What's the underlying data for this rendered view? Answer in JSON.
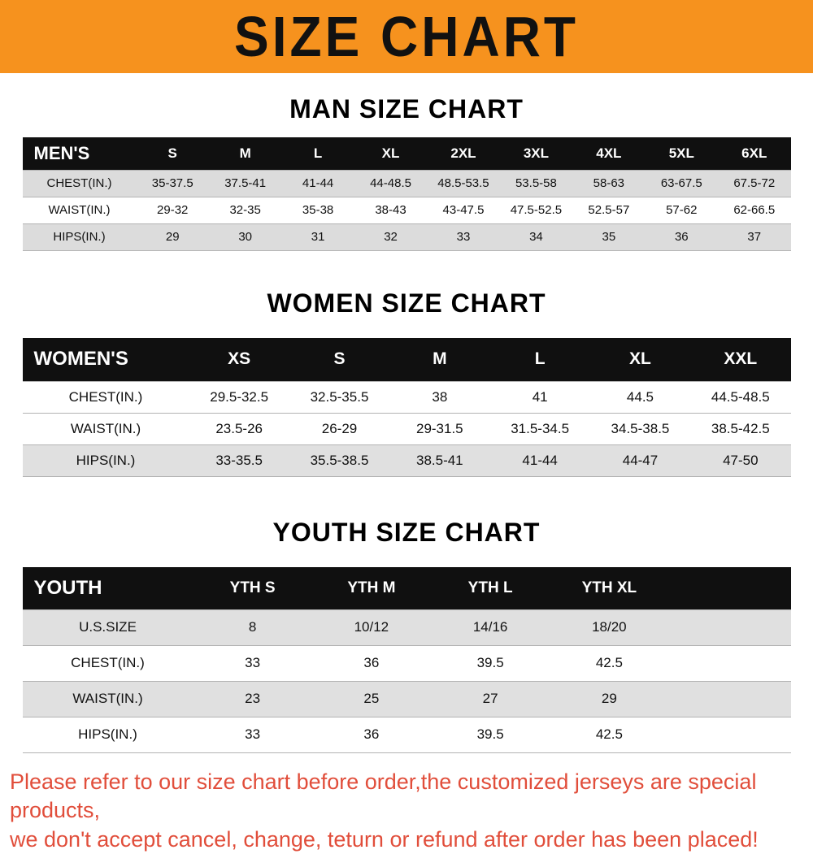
{
  "banner": {
    "title": "SIZE CHART",
    "bg_color": "#F6921E",
    "text_color": "#111111"
  },
  "sections": [
    {
      "heading": "MAN SIZE CHART",
      "table": {
        "header": [
          "MEN'S",
          "S",
          "M",
          "L",
          "XL",
          "2XL",
          "3XL",
          "4XL",
          "5XL",
          "6XL"
        ],
        "rows": [
          {
            "label": "CHEST(IN.)",
            "values": [
              "35-37.5",
              "37.5-41",
              "41-44",
              "44-48.5",
              "48.5-53.5",
              "53.5-58",
              "58-63",
              "63-67.5",
              "67.5-72"
            ]
          },
          {
            "label": "WAIST(IN.)",
            "values": [
              "29-32",
              "32-35",
              "35-38",
              "38-43",
              "43-47.5",
              "47.5-52.5",
              "52.5-57",
              "57-62",
              "62-66.5"
            ]
          },
          {
            "label": "HIPS(IN.)",
            "values": [
              "29",
              "30",
              "31",
              "32",
              "33",
              "34",
              "35",
              "36",
              "37"
            ]
          }
        ]
      }
    },
    {
      "heading": "WOMEN SIZE CHART",
      "table": {
        "header": [
          "WOMEN'S",
          "XS",
          "S",
          "M",
          "L",
          "XL",
          "XXL"
        ],
        "rows": [
          {
            "label": "CHEST(IN.)",
            "values": [
              "29.5-32.5",
              "32.5-35.5",
              "38",
              "41",
              "44.5",
              "44.5-48.5"
            ]
          },
          {
            "label": "WAIST(IN.)",
            "values": [
              "23.5-26",
              "26-29",
              "29-31.5",
              "31.5-34.5",
              "34.5-38.5",
              "38.5-42.5"
            ]
          },
          {
            "label": "HIPS(IN.)",
            "values": [
              "33-35.5",
              "35.5-38.5",
              "38.5-41",
              "41-44",
              "44-47",
              "47-50"
            ]
          }
        ]
      }
    },
    {
      "heading": "YOUTH SIZE CHART",
      "table": {
        "header": [
          "YOUTH",
          "YTH S",
          "YTH M",
          "YTH L",
          "YTH XL"
        ],
        "rows": [
          {
            "label": "U.S.SIZE",
            "values": [
              "8",
              "10/12",
              "14/16",
              "18/20"
            ]
          },
          {
            "label": "CHEST(IN.)",
            "values": [
              "33",
              "36",
              "39.5",
              "42.5"
            ]
          },
          {
            "label": "WAIST(IN.)",
            "values": [
              "23",
              "25",
              "27",
              "29"
            ]
          },
          {
            "label": "HIPS(IN.)",
            "values": [
              "33",
              "36",
              "39.5",
              "42.5"
            ]
          }
        ]
      }
    }
  ],
  "footer": {
    "line1": "Please refer to our size chart before order,the customized jerseys are special products,",
    "line2": "we don't accept cancel, change, teturn or refund after order has been placed!",
    "text_color": "#E14E3B"
  }
}
